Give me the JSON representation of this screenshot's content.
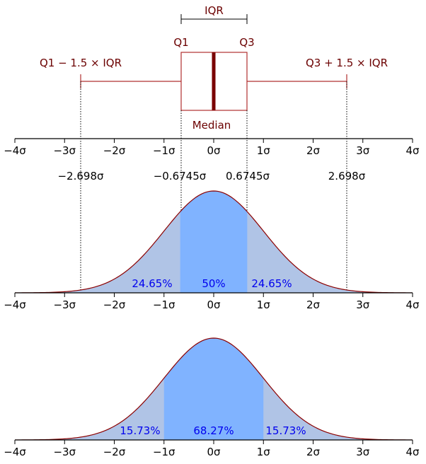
{
  "colors": {
    "box": "#6b0000",
    "label": "#6b0000",
    "pct": "#0000ee",
    "curve": "#8b0000",
    "fill_inner": "#80b3ff",
    "fill_outer": "#b0c4e6",
    "axis": "#000000"
  },
  "boxplot": {
    "iqr_label": "IQR",
    "q1_label": "Q1",
    "q3_label": "Q3",
    "median_label": "Median",
    "lower_whisker_label": "Q1 − 1.5 × IQR",
    "upper_whisker_label": "Q3 + 1.5 × IQR",
    "q1": -0.6745,
    "q3": 0.6745,
    "median": 0,
    "lower_whisker": -2.698,
    "upper_whisker": 2.698
  },
  "axis": {
    "ticks": [
      -4,
      -3,
      -2,
      -1,
      0,
      1,
      2,
      3,
      4
    ],
    "tick_labels": [
      "−4σ",
      "−3σ",
      "−2σ",
      "−1σ",
      "0σ",
      "1σ",
      "2σ",
      "3σ",
      "4σ"
    ]
  },
  "markers": {
    "labels": [
      "−2.698σ",
      "−0.6745σ",
      "0.6745σ",
      "2.698σ"
    ],
    "values": [
      -2.698,
      -0.6745,
      0.6745,
      2.698
    ]
  },
  "panel_iqr": {
    "inner_range": [
      -0.6745,
      0.6745
    ],
    "percentages": [
      "24.65%",
      "50%",
      "24.65%"
    ]
  },
  "panel_sigma": {
    "inner_range": [
      -1,
      1
    ],
    "percentages": [
      "15.73%",
      "68.27%",
      "15.73%"
    ]
  }
}
